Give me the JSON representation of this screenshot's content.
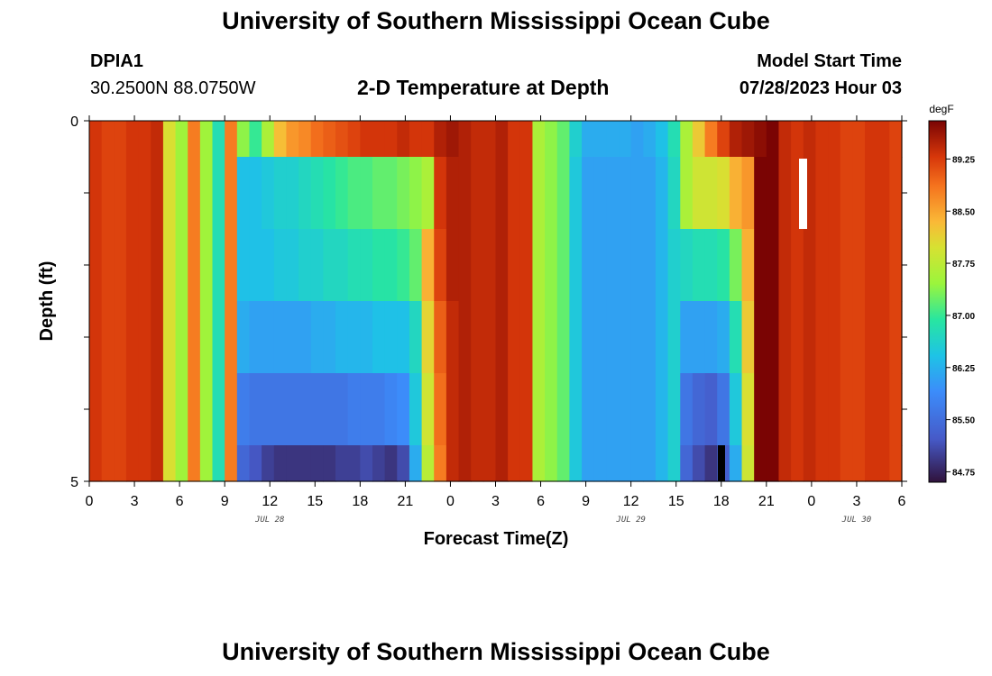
{
  "header": {
    "title": "University of Southern Mississippi Ocean Cube",
    "station_id": "DPIA1",
    "coords": "30.2500N  88.0750W",
    "model_start_label": "Model Start Time",
    "model_start_value": "07/28/2023 Hour 03"
  },
  "footer": {
    "title": "University of Southern Mississippi Ocean Cube"
  },
  "chart_data": {
    "type": "heatmap",
    "title": "2-D Temperature at Depth",
    "xlabel": "Forecast Time(Z)",
    "ylabel": "Depth (ft)",
    "ylim": [
      0,
      5
    ],
    "y_tick_labels": [
      "0",
      "5"
    ],
    "x_range_hours": [
      0,
      54
    ],
    "x_tick_labels": [
      "0",
      "3",
      "6",
      "9",
      "12",
      "15",
      "18",
      "21",
      "0",
      "3",
      "6",
      "9",
      "12",
      "15",
      "18",
      "21",
      "0",
      "3",
      "6"
    ],
    "date_labels": [
      {
        "label": "JUL 28",
        "hour": 12
      },
      {
        "label": "JUL 29",
        "hour": 36
      },
      {
        "label": "JUL 30",
        "hour": 51
      }
    ],
    "colorbar": {
      "unit": "degF",
      "min": 84.6,
      "max": 89.8,
      "tick_labels": [
        "89.25",
        "88.50",
        "87.75",
        "87.00",
        "86.25",
        "85.50",
        "84.75"
      ],
      "tick_values": [
        89.25,
        88.5,
        87.75,
        87.0,
        86.25,
        85.5,
        84.75
      ]
    },
    "depth_bins_ft": [
      "0-0.5",
      "0.5-1.5",
      "1.5-2.5",
      "2.5-3.5",
      "3.5-4.5",
      "4.5-5"
    ],
    "temperature_degF": [
      [
        89.3,
        89.2,
        89.2,
        89.3,
        89.3,
        89.4,
        88.0,
        87.5,
        88.8,
        87.5,
        86.8,
        88.8,
        87.4,
        87.0,
        87.6,
        88.3,
        88.6,
        88.7,
        88.9,
        89.0,
        89.1,
        89.2,
        89.3,
        89.3,
        89.3,
        89.4,
        89.3,
        89.3,
        89.5,
        89.6,
        89.5,
        89.4,
        89.4,
        89.5,
        89.3,
        89.3,
        87.6,
        87.4,
        87.2,
        86.6,
        86.2,
        86.2,
        86.2,
        86.2,
        86.1,
        86.2,
        86.4,
        86.8,
        87.6,
        88.2,
        88.8,
        89.2,
        89.5,
        89.6,
        89.7,
        89.8,
        89.4,
        89.3,
        89.4,
        89.3,
        89.3,
        89.2,
        89.2,
        89.3,
        89.3,
        89.2
      ],
      [
        89.3,
        89.2,
        89.2,
        89.3,
        89.3,
        89.4,
        88.0,
        87.5,
        88.8,
        87.5,
        86.8,
        88.8,
        86.4,
        86.4,
        86.5,
        86.6,
        86.6,
        86.7,
        86.8,
        86.9,
        87.0,
        87.1,
        87.1,
        87.2,
        87.2,
        87.3,
        87.4,
        87.6,
        89.3,
        89.5,
        89.5,
        89.4,
        89.4,
        89.5,
        89.3,
        89.3,
        87.6,
        87.4,
        87.2,
        86.5,
        86.1,
        86.1,
        86.1,
        86.1,
        86.1,
        86.1,
        86.3,
        86.7,
        87.6,
        87.9,
        87.9,
        88.0,
        88.4,
        88.6,
        89.8,
        89.8,
        89.4,
        89.3,
        89.4,
        89.3,
        89.3,
        89.2,
        89.2,
        89.3,
        89.3,
        89.2
      ],
      [
        89.3,
        89.2,
        89.2,
        89.3,
        89.3,
        89.4,
        88.0,
        87.5,
        88.8,
        87.5,
        86.8,
        88.8,
        86.4,
        86.4,
        86.4,
        86.5,
        86.5,
        86.6,
        86.6,
        86.7,
        86.7,
        86.8,
        86.8,
        86.9,
        86.9,
        87.0,
        87.2,
        88.4,
        89.2,
        89.5,
        89.5,
        89.4,
        89.4,
        89.5,
        89.3,
        89.3,
        87.6,
        87.4,
        87.2,
        86.5,
        86.1,
        86.1,
        86.1,
        86.1,
        86.1,
        86.1,
        86.3,
        86.6,
        86.7,
        86.8,
        86.8,
        86.9,
        87.3,
        88.4,
        89.8,
        89.8,
        89.4,
        89.3,
        89.4,
        89.3,
        89.3,
        89.2,
        89.2,
        89.3,
        89.3,
        89.2
      ],
      [
        89.3,
        89.2,
        89.2,
        89.3,
        89.3,
        89.4,
        88.0,
        87.5,
        88.8,
        87.5,
        86.8,
        88.8,
        86.2,
        86.1,
        86.1,
        86.1,
        86.1,
        86.1,
        86.2,
        86.2,
        86.3,
        86.3,
        86.3,
        86.4,
        86.4,
        86.4,
        86.7,
        88.1,
        89.0,
        89.4,
        89.5,
        89.4,
        89.4,
        89.5,
        89.3,
        89.3,
        87.6,
        87.4,
        87.2,
        86.5,
        86.1,
        86.1,
        86.1,
        86.1,
        86.1,
        86.1,
        86.3,
        86.6,
        86.1,
        86.1,
        86.1,
        86.2,
        86.8,
        88.2,
        89.8,
        89.8,
        89.4,
        89.3,
        89.4,
        89.3,
        89.3,
        89.2,
        89.2,
        89.3,
        89.3,
        89.2
      ],
      [
        89.3,
        89.2,
        89.2,
        89.3,
        89.3,
        89.4,
        88.0,
        87.5,
        88.8,
        87.5,
        86.8,
        88.8,
        85.7,
        85.6,
        85.6,
        85.6,
        85.6,
        85.6,
        85.6,
        85.6,
        85.6,
        85.7,
        85.7,
        85.7,
        85.8,
        85.9,
        86.5,
        87.9,
        88.9,
        89.4,
        89.5,
        89.4,
        89.4,
        89.5,
        89.3,
        89.3,
        87.6,
        87.4,
        87.2,
        86.5,
        86.1,
        86.1,
        86.1,
        86.1,
        86.1,
        86.1,
        86.3,
        86.6,
        85.6,
        85.4,
        85.3,
        85.6,
        86.5,
        88.0,
        89.8,
        89.8,
        89.4,
        89.3,
        89.4,
        89.3,
        89.3,
        89.2,
        89.2,
        89.3,
        89.3,
        89.2
      ],
      [
        89.3,
        89.2,
        89.2,
        89.3,
        89.3,
        89.4,
        88.0,
        87.5,
        88.8,
        87.5,
        86.8,
        88.8,
        85.4,
        85.2,
        85.0,
        84.9,
        84.9,
        84.9,
        84.9,
        84.9,
        85.0,
        85.0,
        85.1,
        85.0,
        84.9,
        85.1,
        86.2,
        87.7,
        88.8,
        89.4,
        89.5,
        89.4,
        89.4,
        89.5,
        89.3,
        89.3,
        87.6,
        87.4,
        87.2,
        86.5,
        86.1,
        86.1,
        86.1,
        86.1,
        86.1,
        86.1,
        86.3,
        86.6,
        85.4,
        85.1,
        84.9,
        85.3,
        86.2,
        87.9,
        89.8,
        89.8,
        89.4,
        89.3,
        89.4,
        89.3,
        89.3,
        89.2,
        89.2,
        89.3,
        89.3,
        89.2
      ]
    ]
  }
}
